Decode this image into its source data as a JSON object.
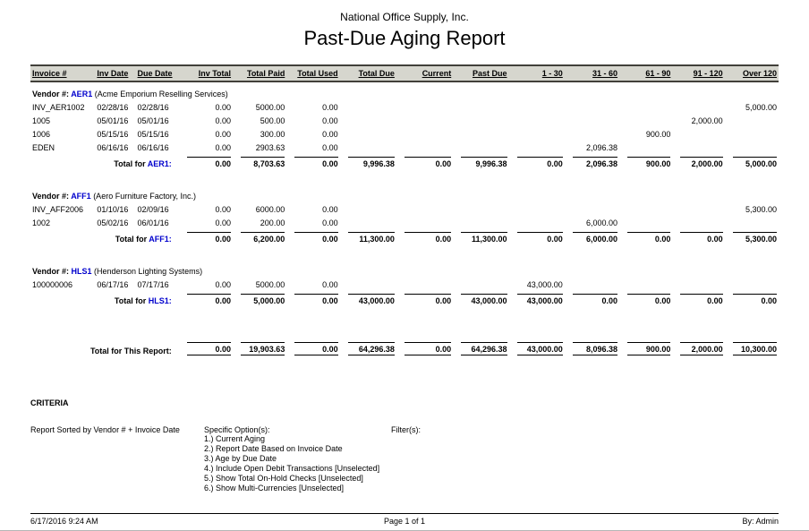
{
  "report": {
    "company": "National Office Supply, Inc.",
    "title": "Past-Due Aging Report"
  },
  "colors": {
    "accent_blue": "#0000cd",
    "header_band": "#d6d6ce",
    "rule_dark": "#41403a"
  },
  "table": {
    "columns": [
      "Invoice #",
      "Inv Date",
      "Due Date",
      "Inv Total",
      "Total Paid",
      "Total Used",
      "Total Due",
      "Current",
      "Past Due",
      "1 - 30",
      "31 - 60",
      "61 - 90",
      "91 - 120",
      "Over 120"
    ],
    "sections": [
      {
        "vendor_prefix": "Vendor #:",
        "vendor_code": "AER1",
        "vendor_name": "(Acme Emporium Reselling Services)",
        "rows": [
          [
            "INV_AER1002",
            "02/28/16",
            "02/28/16",
            "0.00",
            "5000.00",
            "0.00",
            "",
            "",
            "",
            "",
            "",
            "",
            "",
            "5,000.00"
          ],
          [
            "1005",
            "05/01/16",
            "05/01/16",
            "0.00",
            "500.00",
            "0.00",
            "",
            "",
            "",
            "",
            "",
            "",
            "2,000.00",
            ""
          ],
          [
            "1006",
            "05/15/16",
            "05/15/16",
            "0.00",
            "300.00",
            "0.00",
            "",
            "",
            "",
            "",
            "",
            "900.00",
            "",
            ""
          ],
          [
            "EDEN",
            "06/16/16",
            "06/16/16",
            "0.00",
            "2903.63",
            "0.00",
            "",
            "",
            "",
            "",
            "2,096.38",
            "",
            "",
            ""
          ]
        ],
        "total_label_prefix": "Total for",
        "total_code": "AER1:",
        "totals": [
          "0.00",
          "8,703.63",
          "0.00",
          "9,996.38",
          "0.00",
          "9,996.38",
          "0.00",
          "2,096.38",
          "900.00",
          "2,000.00",
          "5,000.00"
        ]
      },
      {
        "vendor_prefix": "Vendor #:",
        "vendor_code": "AFF1",
        "vendor_name": "(Aero Furniture Factory, Inc.)",
        "rows": [
          [
            "INV_AFF2006",
            "01/10/16",
            "02/09/16",
            "0.00",
            "6000.00",
            "0.00",
            "",
            "",
            "",
            "",
            "",
            "",
            "",
            "5,300.00"
          ],
          [
            "1002",
            "05/02/16",
            "06/01/16",
            "0.00",
            "200.00",
            "0.00",
            "",
            "",
            "",
            "",
            "6,000.00",
            "",
            "",
            ""
          ]
        ],
        "total_label_prefix": "Total for",
        "total_code": "AFF1:",
        "totals": [
          "0.00",
          "6,200.00",
          "0.00",
          "11,300.00",
          "0.00",
          "11,300.00",
          "0.00",
          "6,000.00",
          "0.00",
          "0.00",
          "5,300.00"
        ]
      },
      {
        "vendor_prefix": "Vendor #:",
        "vendor_code": "HLS1",
        "vendor_name": "(Henderson Lighting Systems)",
        "rows": [
          [
            "100000006",
            "06/17/16",
            "07/17/16",
            "0.00",
            "5000.00",
            "0.00",
            "",
            "",
            "",
            "43,000.00",
            "",
            "",
            "",
            ""
          ]
        ],
        "total_label_prefix": "Total for",
        "total_code": "HLS1:",
        "totals": [
          "0.00",
          "5,000.00",
          "0.00",
          "43,000.00",
          "0.00",
          "43,000.00",
          "43,000.00",
          "0.00",
          "0.00",
          "0.00",
          "0.00"
        ]
      }
    ],
    "report_total_label": "Total for This Report:",
    "report_totals": [
      "0.00",
      "19,903.63",
      "0.00",
      "64,296.38",
      "0.00",
      "64,296.38",
      "43,000.00",
      "8,096.38",
      "900.00",
      "2,000.00",
      "10,300.00"
    ]
  },
  "criteria": {
    "heading": "CRITERIA",
    "sorted_by": "Report Sorted by Vendor # + Invoice Date",
    "specific_options_label": "Specific Option(s):",
    "options": [
      "1.) Current Aging",
      "2.) Report Date Based on Invoice Date",
      "3.) Age by Due Date",
      "4.) Include Open Debit Transactions [Unselected]",
      "5.) Show Total On-Hold Checks [Unselected]",
      "6.) Show Multi-Currencies [Unselected]"
    ],
    "filters_label": "Filter(s):"
  },
  "footer": {
    "datetime": "6/17/2016 9:24 AM",
    "page": "Page 1 of 1",
    "by": "By: Admin"
  }
}
